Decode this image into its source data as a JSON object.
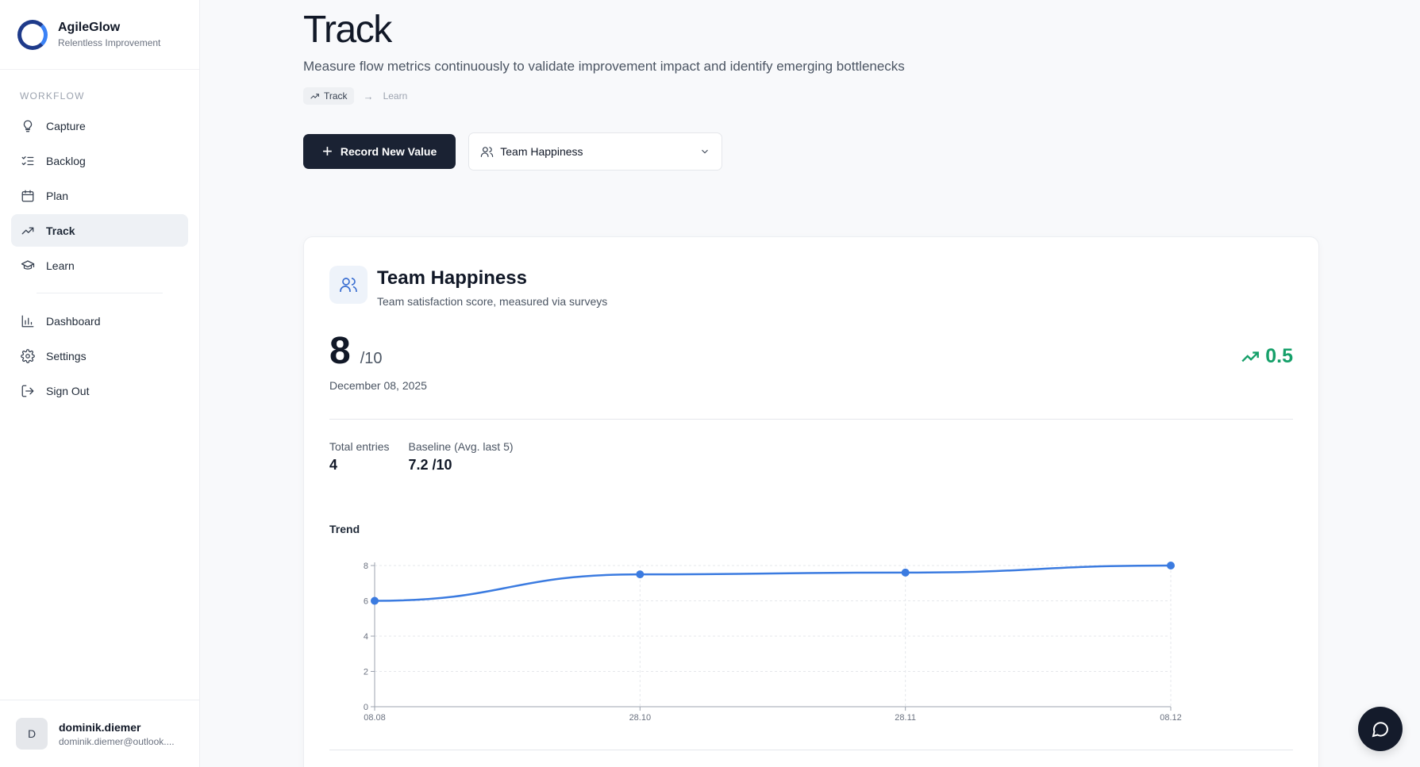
{
  "brand": {
    "name": "AgileGlow",
    "tagline": "Relentless Improvement"
  },
  "sidebar": {
    "section": "WORKFLOW",
    "items": [
      {
        "label": "Capture",
        "icon": "lightbulb-icon"
      },
      {
        "label": "Backlog",
        "icon": "list-checks-icon"
      },
      {
        "label": "Plan",
        "icon": "calendar-icon"
      },
      {
        "label": "Track",
        "icon": "trending-up-icon",
        "active": true
      },
      {
        "label": "Learn",
        "icon": "graduation-cap-icon"
      }
    ],
    "secondary": [
      {
        "label": "Dashboard",
        "icon": "bar-chart-icon"
      },
      {
        "label": "Settings",
        "icon": "gear-icon"
      },
      {
        "label": "Sign Out",
        "icon": "log-out-icon"
      }
    ]
  },
  "user": {
    "initial": "D",
    "name": "dominik.diemer",
    "email": "dominik.diemer@outlook...."
  },
  "page": {
    "title": "Track",
    "subtitle": "Measure flow metrics continuously to validate improvement impact and identify emerging bottlenecks",
    "breadcrumb": {
      "current": "Track",
      "next": "Learn"
    },
    "record_button": "Record New Value",
    "metric_select": "Team Happiness"
  },
  "metric": {
    "title": "Team Happiness",
    "description": "Team satisfaction score, measured via surveys",
    "value": "8",
    "unit": "/10",
    "date": "December 08, 2025",
    "delta": "0.5",
    "total_label": "Total entries",
    "total_value": "4",
    "baseline_label": "Baseline (Avg. last 5)",
    "baseline_value": "7.2 /10",
    "trend_label": "Trend"
  },
  "colors": {
    "accent": "#3b7be0",
    "positive": "#16a06a",
    "primary_button": "#1a2233"
  },
  "chart_data": {
    "type": "line",
    "title": "Trend",
    "x": [
      "08.08",
      "28.10",
      "28.11",
      "08.12"
    ],
    "series": [
      {
        "values": [
          6,
          7.5,
          7.6,
          8
        ]
      }
    ],
    "yticks": [
      0,
      2,
      4,
      6,
      8
    ],
    "ylim": [
      0,
      8
    ],
    "grid": true
  }
}
